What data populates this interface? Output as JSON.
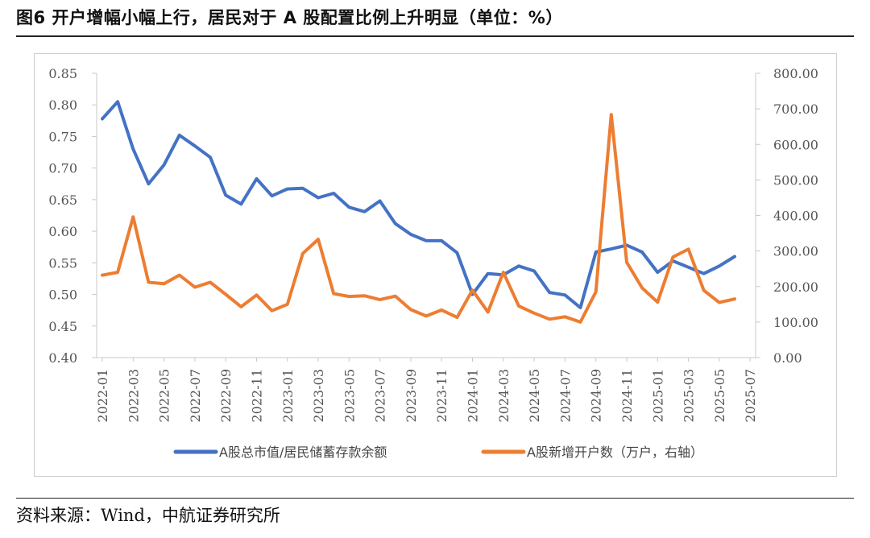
{
  "header": {
    "title": "图6 开户增幅小幅上行，居民对于 A 股配置比例上升明显（单位：%）"
  },
  "footer": {
    "source": "资料来源：Wind，中航证券研究所"
  },
  "chart_data": {
    "type": "line",
    "legend_position": "bottom",
    "grid": false,
    "x_tick_labels": [
      "2022-01",
      "2022-03",
      "2022-05",
      "2022-07",
      "2022-09",
      "2022-11",
      "2023-01",
      "2023-03",
      "2023-05",
      "2023-07",
      "2023-09",
      "2023-11",
      "2024-01",
      "2024-03",
      "2024-05",
      "2024-07",
      "2024-09",
      "2024-11",
      "2025-01",
      "2025-03",
      "2025-05",
      "2025-07"
    ],
    "x": [
      "2022-01",
      "2022-02",
      "2022-03",
      "2022-04",
      "2022-05",
      "2022-06",
      "2022-07",
      "2022-08",
      "2022-09",
      "2022-10",
      "2022-11",
      "2022-12",
      "2023-01",
      "2023-02",
      "2023-03",
      "2023-04",
      "2023-05",
      "2023-06",
      "2023-07",
      "2023-08",
      "2023-09",
      "2023-10",
      "2023-11",
      "2023-12",
      "2024-01",
      "2024-02",
      "2024-03",
      "2024-04",
      "2024-05",
      "2024-06",
      "2024-07",
      "2024-08",
      "2024-09",
      "2024-10",
      "2024-11",
      "2024-12",
      "2025-01",
      "2025-02",
      "2025-03",
      "2025-04",
      "2025-05",
      "2025-06"
    ],
    "y_left": {
      "ylim": [
        0.4,
        0.85
      ],
      "ticks": [
        "0.40",
        "0.45",
        "0.50",
        "0.55",
        "0.60",
        "0.65",
        "0.70",
        "0.75",
        "0.80",
        "0.85"
      ]
    },
    "y_right": {
      "ylim": [
        0,
        800
      ],
      "ticks": [
        "0.00",
        "100.00",
        "200.00",
        "300.00",
        "400.00",
        "500.00",
        "600.00",
        "700.00",
        "800.00"
      ]
    },
    "series": [
      {
        "name": "A股总市值/居民储蓄存款余额",
        "axis": "left",
        "color": "#4472C4",
        "values": [
          0.778,
          0.805,
          0.73,
          0.675,
          0.705,
          0.752,
          0.735,
          0.717,
          0.657,
          0.643,
          0.683,
          0.656,
          0.667,
          0.668,
          0.653,
          0.66,
          0.638,
          0.631,
          0.648,
          0.612,
          0.595,
          0.585,
          0.585,
          0.566,
          0.5,
          0.533,
          0.531,
          0.545,
          0.537,
          0.503,
          0.499,
          0.479,
          0.567,
          0.572,
          0.578,
          0.567,
          0.535,
          0.553,
          0.543,
          0.533,
          0.545,
          0.56
        ]
      },
      {
        "name": "A股新增开户数（万户，右轴）",
        "axis": "right",
        "color": "#ED7D31",
        "values": [
          232,
          240,
          396,
          212,
          208,
          232,
          198,
          212,
          178,
          143,
          176,
          132,
          150,
          293,
          333,
          180,
          172,
          174,
          163,
          173,
          135,
          117,
          134,
          113,
          190,
          128,
          240,
          145,
          125,
          108,
          115,
          100,
          185,
          684,
          268,
          196,
          156,
          283,
          305,
          189,
          155,
          165
        ]
      }
    ]
  }
}
